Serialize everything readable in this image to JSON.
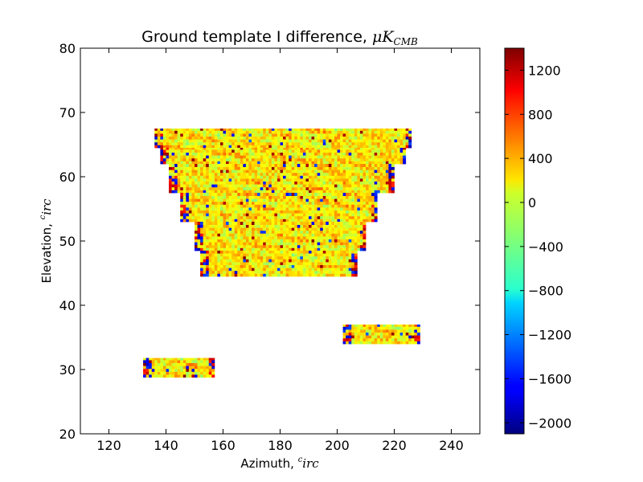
{
  "chart_data": {
    "type": "heatmap",
    "title": "Ground template I difference, ",
    "title_math": "μK",
    "title_sub": "CMB",
    "xlabel": "Azimuth, ",
    "xlabel_math": "irc",
    "xlabel_sup": "c",
    "ylabel": "Elevation, ",
    "ylabel_math": "irc",
    "ylabel_sup": "c",
    "xlim": [
      110,
      250
    ],
    "ylim": [
      20,
      80
    ],
    "xticks": [
      120,
      140,
      160,
      180,
      200,
      220,
      240
    ],
    "yticks": [
      20,
      30,
      40,
      50,
      60,
      70,
      80
    ],
    "colormap": "jet",
    "colorbar": {
      "range": [
        -2100,
        1400
      ],
      "ticks": [
        1200,
        800,
        400,
        0,
        -400,
        -800,
        -1200,
        -1600,
        -2000
      ]
    },
    "regions": [
      {
        "name": "main-patch",
        "el_ranges": [
          {
            "el": [
              64.5,
              67.5
            ],
            "az": [
              136,
              226
            ]
          },
          {
            "el": [
              62.0,
              64.5
            ],
            "az": [
              138,
              224
            ]
          },
          {
            "el": [
              57.5,
              62.0
            ],
            "az": [
              141,
              220
            ]
          },
          {
            "el": [
              53.0,
              57.5
            ],
            "az": [
              145,
              214
            ]
          },
          {
            "el": [
              48.5,
              53.0
            ],
            "az": [
              150,
              210
            ]
          },
          {
            "el": [
              44.5,
              48.5
            ],
            "az": [
              152,
              207
            ]
          }
        ]
      },
      {
        "name": "patch-right",
        "el_ranges": [
          {
            "el": [
              34.0,
              37.0
            ],
            "az": [
              202,
              229
            ]
          }
        ]
      },
      {
        "name": "patch-left",
        "el_ranges": [
          {
            "el": [
              28.8,
              31.8
            ],
            "az": [
              132,
              157
            ]
          }
        ]
      }
    ]
  }
}
